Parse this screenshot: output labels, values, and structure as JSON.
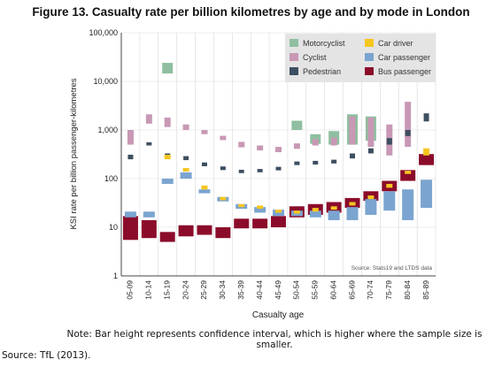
{
  "chart_data": {
    "type": "box",
    "title": "Figure 13. Casualty rate per billion kilometres by age and by mode in London",
    "xlabel": "Casualty age",
    "ylabel": "KSI rate per billion passenger-kilometres",
    "yscale": "log",
    "ylim": [
      1,
      100000
    ],
    "yticks": [
      "100,000",
      "10,000",
      "1,000",
      "100",
      "10",
      "1"
    ],
    "ytick_values": [
      100000,
      10000,
      1000,
      100,
      10,
      1
    ],
    "categories": [
      "05-09",
      "10-14",
      "15-19",
      "20-24",
      "25-29",
      "30-34",
      "35-39",
      "40-44",
      "45-49",
      "50-54",
      "55-59",
      "60-64",
      "65-69",
      "70-74",
      "75-79",
      "80-84",
      "85-89"
    ],
    "grid": true,
    "legend_position": "top-right",
    "annotation": "Source: Stats19 and LTDS data",
    "series": [
      {
        "name": "Motorcyclist",
        "color": "#8fbfa0",
        "ranges": [
          null,
          null,
          [
            14500,
            24000
          ],
          null,
          null,
          null,
          null,
          null,
          null,
          [
            1000,
            1550
          ],
          [
            520,
            820
          ],
          [
            500,
            950
          ],
          [
            500,
            2100
          ],
          [
            600,
            1900
          ],
          null,
          null,
          null
        ]
      },
      {
        "name": "Cyclist",
        "color": "#c898b4",
        "ranges": [
          [
            500,
            1000
          ],
          [
            1350,
            2100
          ],
          [
            1150,
            1800
          ],
          [
            1000,
            1300
          ],
          [
            820,
            1000
          ],
          [
            620,
            760
          ],
          [
            440,
            570
          ],
          [
            380,
            480
          ],
          [
            350,
            450
          ],
          [
            410,
            530
          ],
          [
            480,
            650
          ],
          [
            480,
            700
          ],
          [
            500,
            1900
          ],
          [
            450,
            1800
          ],
          [
            300,
            1300
          ],
          [
            450,
            3800
          ],
          null
        ]
      },
      {
        "name": "Pedestrian",
        "color": "#3d4f60",
        "ranges": [
          [
            250,
            310
          ],
          [
            480,
            560
          ],
          [
            270,
            330
          ],
          [
            240,
            290
          ],
          [
            180,
            215
          ],
          [
            150,
            178
          ],
          [
            130,
            152
          ],
          [
            135,
            158
          ],
          [
            148,
            175
          ],
          [
            190,
            225
          ],
          [
            195,
            232
          ],
          [
            205,
            245
          ],
          [
            260,
            330
          ],
          [
            330,
            420
          ],
          [
            500,
            680
          ],
          [
            750,
            1000
          ],
          [
            1500,
            2200
          ]
        ]
      },
      {
        "name": "Car driver",
        "color": "#f6c620",
        "ranges": [
          null,
          null,
          [
            250,
            310
          ],
          [
            140,
            165
          ],
          [
            60,
            72
          ],
          [
            36,
            42
          ],
          [
            26,
            30
          ],
          [
            24,
            28
          ],
          [
            20,
            23
          ],
          [
            19,
            22
          ],
          [
            21,
            25
          ],
          [
            23,
            27
          ],
          [
            28,
            33
          ],
          [
            38,
            45
          ],
          [
            65,
            78
          ],
          [
            125,
            145
          ],
          [
            300,
            420
          ]
        ]
      },
      {
        "name": "Car passenger",
        "color": "#7ba4d0",
        "ranges": [
          [
            16,
            21
          ],
          [
            16,
            21
          ],
          [
            78,
            100
          ],
          [
            100,
            135
          ],
          [
            50,
            60
          ],
          [
            34,
            42
          ],
          [
            24,
            30
          ],
          [
            20,
            26
          ],
          [
            17,
            23
          ],
          [
            17,
            22
          ],
          [
            16,
            22
          ],
          [
            14,
            22
          ],
          [
            14,
            26
          ],
          [
            18,
            38
          ],
          [
            22,
            55
          ],
          [
            14,
            60
          ],
          [
            25,
            95
          ]
        ]
      },
      {
        "name": "Bus passenger",
        "color": "#8b0c2a",
        "ranges": [
          [
            5.5,
            17
          ],
          [
            6,
            14
          ],
          [
            5,
            8
          ],
          [
            6.5,
            11
          ],
          [
            7,
            11
          ],
          [
            6,
            10
          ],
          [
            9.5,
            15
          ],
          [
            9.5,
            15
          ],
          [
            10,
            17
          ],
          [
            16,
            27
          ],
          [
            18,
            30
          ],
          [
            20,
            33
          ],
          [
            25,
            40
          ],
          [
            35,
            55
          ],
          [
            55,
            90
          ],
          [
            90,
            150
          ],
          [
            190,
            320
          ]
        ]
      }
    ]
  },
  "note": "Note: Bar height represents confidence interval, which is higher where the sample size is smaller.",
  "source": "Source: TfL (2013)."
}
